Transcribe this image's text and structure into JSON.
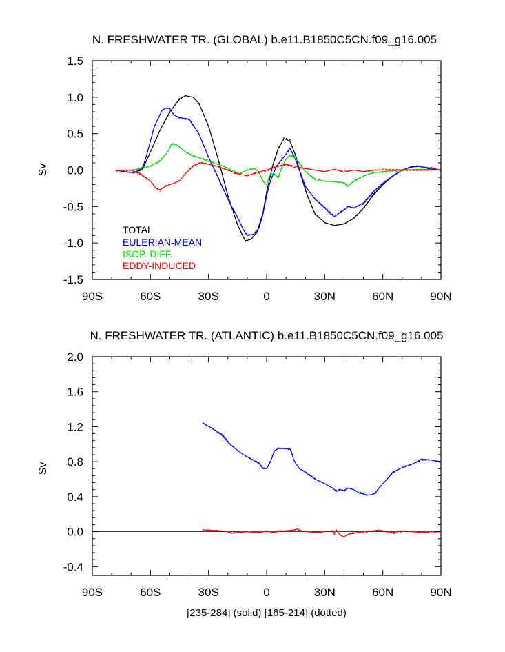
{
  "chart_data": [
    {
      "type": "line",
      "title": "N. FRESHWATER TR. (GLOBAL) b.e11.B1850C5CN.f09_g16.005",
      "xlabel": "",
      "ylabel": "Sv",
      "xlim": [
        -90,
        90
      ],
      "ylim": [
        -1.5,
        1.5
      ],
      "xticks": [
        -90,
        -60,
        -30,
        0,
        30,
        60,
        90
      ],
      "xtick_labels": [
        "90S",
        "60S",
        "30S",
        "0",
        "30N",
        "60N",
        "90N"
      ],
      "yticks": [
        -1.5,
        -1.0,
        -0.5,
        0.0,
        0.5,
        1.0,
        1.5
      ],
      "ytick_labels": [
        "-1.5",
        "-1.0",
        "-0.5",
        "0.0",
        "0.5",
        "1.0",
        "1.5"
      ],
      "legend": {
        "placement": "lower-left",
        "entries": [
          {
            "label": "TOTAL",
            "color": "#000000"
          },
          {
            "label": "EULERIAN-MEAN",
            "color": "#0000ff"
          },
          {
            "label": "ISOP. DIFF.",
            "color": "#00dd00"
          },
          {
            "label": "EDDY-INDUCED",
            "color": "#ff0000"
          }
        ]
      },
      "series": [
        {
          "name": "TOTAL",
          "color": "#000000",
          "x": [
            -78,
            -72,
            -68,
            -64,
            -60,
            -55,
            -50,
            -45,
            -42,
            -38,
            -35,
            -30,
            -25,
            -20,
            -15,
            -11,
            -8,
            -5,
            -2,
            0,
            3,
            6,
            9,
            12,
            15,
            18,
            21,
            25,
            30,
            35,
            40,
            45,
            50,
            55,
            60,
            65,
            70,
            75,
            78,
            82,
            85,
            90
          ],
          "y": [
            0.0,
            -0.03,
            -0.03,
            0.02,
            0.25,
            0.55,
            0.8,
            0.97,
            1.02,
            1.0,
            0.92,
            0.6,
            0.15,
            -0.35,
            -0.75,
            -0.97,
            -0.95,
            -0.85,
            -0.6,
            -0.3,
            0.05,
            0.3,
            0.43,
            0.4,
            0.2,
            -0.1,
            -0.35,
            -0.6,
            -0.72,
            -0.76,
            -0.74,
            -0.66,
            -0.52,
            -0.35,
            -0.2,
            -0.08,
            0.0,
            0.05,
            0.06,
            0.03,
            0.01,
            0.0
          ]
        },
        {
          "name": "EULERIAN-MEAN",
          "color": "#0000ff",
          "x": [
            -78,
            -72,
            -68,
            -64,
            -62,
            -58,
            -54,
            -52,
            -50,
            -48,
            -45,
            -40,
            -35,
            -30,
            -25,
            -20,
            -15,
            -12,
            -10,
            -7,
            -4,
            -2,
            0,
            2,
            5,
            8,
            10,
            12,
            14,
            17,
            20,
            25,
            30,
            33,
            35,
            37,
            40,
            42,
            45,
            50,
            55,
            60,
            65,
            70,
            75,
            78,
            82,
            86,
            90
          ],
          "y": [
            0.0,
            -0.03,
            -0.03,
            0.03,
            0.2,
            0.6,
            0.82,
            0.85,
            0.84,
            0.76,
            0.72,
            0.7,
            0.5,
            0.18,
            -0.1,
            -0.4,
            -0.65,
            -0.82,
            -0.9,
            -0.88,
            -0.8,
            -0.62,
            -0.35,
            -0.15,
            0.05,
            0.15,
            0.22,
            0.3,
            0.2,
            0.0,
            -0.22,
            -0.4,
            -0.52,
            -0.6,
            -0.64,
            -0.6,
            -0.55,
            -0.5,
            -0.52,
            -0.45,
            -0.3,
            -0.18,
            -0.08,
            0.0,
            0.04,
            0.05,
            0.04,
            0.02,
            0.0
          ]
        },
        {
          "name": "ISOP. DIFF.",
          "color": "#00dd00",
          "x": [
            -78,
            -70,
            -65,
            -60,
            -55,
            -51,
            -49,
            -46,
            -42,
            -38,
            -33,
            -28,
            -22,
            -18,
            -14,
            -10,
            -6,
            -4,
            -2,
            0,
            1,
            2,
            4,
            6,
            8,
            10,
            12,
            14,
            17,
            20,
            25,
            30,
            35,
            40,
            42,
            45,
            50,
            55,
            60,
            70,
            80,
            90
          ],
          "y": [
            0.0,
            0.0,
            0.02,
            0.06,
            0.12,
            0.25,
            0.36,
            0.34,
            0.25,
            0.2,
            0.15,
            0.1,
            0.05,
            0.0,
            -0.05,
            0.0,
            0.02,
            -0.03,
            -0.15,
            -0.2,
            -0.12,
            -0.05,
            -0.05,
            -0.1,
            0.05,
            0.15,
            0.2,
            0.18,
            0.1,
            -0.02,
            -0.12,
            -0.15,
            -0.16,
            -0.17,
            -0.22,
            -0.15,
            -0.08,
            -0.04,
            -0.02,
            0.0,
            0.01,
            0.0
          ]
        },
        {
          "name": "EDDY-INDUCED",
          "color": "#ff0000",
          "x": [
            -78,
            -70,
            -65,
            -60,
            -57,
            -55,
            -52,
            -48,
            -45,
            -42,
            -38,
            -34,
            -30,
            -25,
            -20,
            -15,
            -10,
            -5,
            0,
            5,
            10,
            15,
            20,
            25,
            30,
            35,
            40,
            45,
            50,
            55,
            60,
            70,
            80,
            90
          ],
          "y": [
            0.0,
            0.0,
            -0.05,
            -0.15,
            -0.25,
            -0.27,
            -0.22,
            -0.18,
            -0.15,
            -0.05,
            0.05,
            0.1,
            0.08,
            0.05,
            0.0,
            -0.05,
            -0.08,
            -0.03,
            0.0,
            0.05,
            0.08,
            0.05,
            0.02,
            0.0,
            -0.02,
            0.01,
            -0.03,
            0.0,
            -0.02,
            0.0,
            0.0,
            0.0,
            0.0,
            0.0
          ]
        }
      ]
    },
    {
      "type": "line",
      "title": "N. FRESHWATER TR. (ATLANTIC) b.e11.B1850C5CN.f09_g16.005",
      "xlabel": "[235-284] (solid) [165-214] (dotted)",
      "ylabel": "Sv",
      "xlim": [
        -90,
        90
      ],
      "ylim": [
        -0.5,
        2.0
      ],
      "xticks": [
        -90,
        -60,
        -30,
        0,
        30,
        60,
        90
      ],
      "xtick_labels": [
        "90S",
        "60S",
        "30S",
        "0",
        "30N",
        "60N",
        "90N"
      ],
      "yticks": [
        -0.4,
        0.0,
        0.4,
        0.8,
        1.2,
        1.6,
        2.0
      ],
      "ytick_labels": [
        "-0.4",
        "0.0",
        "0.4",
        "0.8",
        "1.2",
        "1.6",
        "2.0"
      ],
      "series": [
        {
          "name": "EULERIAN-MEAN",
          "color": "#0000ff",
          "x": [
            -33,
            -28,
            -23,
            -19,
            -15,
            -12,
            -8,
            -4,
            -2,
            0,
            2,
            4,
            6,
            9,
            12,
            13,
            14,
            15,
            17,
            20,
            25,
            30,
            34,
            36,
            38,
            40,
            42,
            45,
            48,
            50,
            52,
            54,
            56,
            58,
            60,
            63,
            65,
            70,
            75,
            80,
            85,
            90
          ],
          "y": [
            1.24,
            1.18,
            1.1,
            1.0,
            0.93,
            0.88,
            0.83,
            0.78,
            0.72,
            0.72,
            0.8,
            0.92,
            0.95,
            0.95,
            0.95,
            0.9,
            0.82,
            0.78,
            0.72,
            0.68,
            0.6,
            0.55,
            0.5,
            0.46,
            0.48,
            0.47,
            0.5,
            0.48,
            0.44,
            0.43,
            0.42,
            0.42,
            0.44,
            0.5,
            0.55,
            0.62,
            0.68,
            0.73,
            0.77,
            0.83,
            0.82,
            0.8
          ]
        },
        {
          "name": "EDDY-INDUCED",
          "color": "#ff0000",
          "x": [
            -33,
            -30,
            -25,
            -20,
            -18,
            -15,
            -10,
            -5,
            -2,
            0,
            3,
            6,
            10,
            14,
            16,
            18,
            22,
            26,
            30,
            34,
            35,
            36,
            38,
            40,
            42,
            45,
            50,
            55,
            58,
            60,
            65,
            70,
            75,
            80,
            85,
            90
          ],
          "y": [
            0.02,
            0.02,
            0.01,
            0.0,
            -0.02,
            -0.01,
            0.0,
            -0.01,
            0.0,
            0.01,
            -0.01,
            0.0,
            0.01,
            0.02,
            0.03,
            0.01,
            0.0,
            -0.01,
            0.0,
            0.01,
            -0.02,
            0.02,
            -0.04,
            -0.06,
            -0.03,
            -0.02,
            0.0,
            0.01,
            0.02,
            0.01,
            -0.01,
            0.01,
            0.0,
            -0.01,
            0.0,
            0.0
          ]
        }
      ]
    }
  ]
}
